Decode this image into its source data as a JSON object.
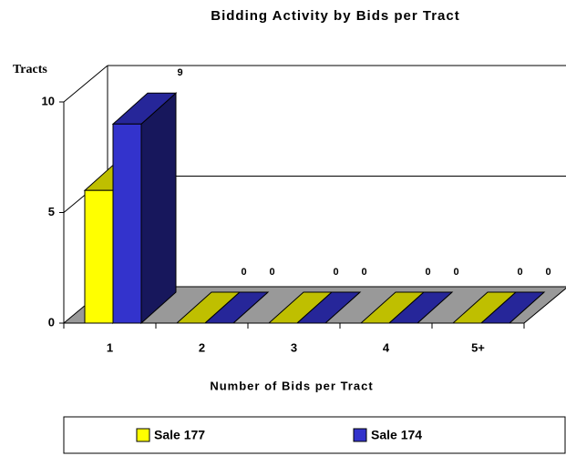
{
  "chart_data": {
    "type": "bar3d",
    "title": "Bidding Activity by Bids per Tract",
    "y_label": "Tracts",
    "x_label": "Number of Bids per Tract",
    "categories": [
      "1",
      "2",
      "3",
      "4",
      "5+"
    ],
    "series": [
      {
        "name": "Sale 177",
        "color": "#ffff00",
        "values": [
          6,
          0,
          0,
          0,
          0
        ]
      },
      {
        "name": "Sale 174",
        "color": "#3333cc",
        "values": [
          9,
          0,
          0,
          0,
          0
        ]
      }
    ],
    "ylim": [
      0,
      10
    ],
    "yticks": [
      0,
      5,
      10
    ],
    "grid": true,
    "legend": "bottom"
  }
}
